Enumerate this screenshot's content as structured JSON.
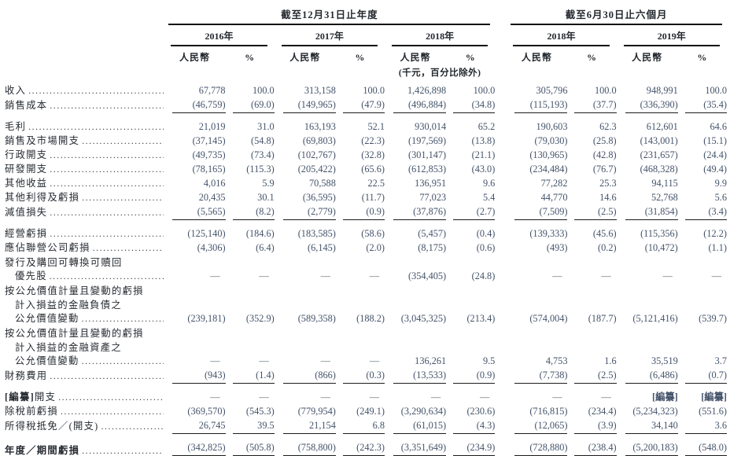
{
  "meta": {
    "currency_note": "(千元，百分比除外)"
  },
  "colors": {
    "number_color": "#44536a",
    "label_color": "#262b31",
    "rule_color": "#1c1c1c"
  },
  "header": {
    "periods": [
      {
        "label": "截至12月31日止年度"
      },
      {
        "label": "截至6月30日止六個月"
      }
    ],
    "year_groups": [
      "2016年",
      "2017年",
      "2018年",
      "2018年",
      "2019年"
    ],
    "unit_rmb": "人民幣",
    "unit_pct": "%"
  },
  "rows": [
    {
      "lines": [
        "收入"
      ],
      "values": [
        "67,778",
        "100.0",
        "313,158",
        "100.0",
        "1,426,898",
        "100.0",
        "305,796",
        "100.0",
        "948,991",
        "100.0"
      ],
      "rule_below": null,
      "space_above": false,
      "bold": false
    },
    {
      "lines": [
        "銷售成本"
      ],
      "values": [
        "(46,759)",
        "(69.0)",
        "(149,965)",
        "(47.9)",
        "(496,884)",
        "(34.8)",
        "(115,193)",
        "(37.7)",
        "(336,390)",
        "(35.4)"
      ],
      "rule_below": "single",
      "space_above": false,
      "bold": false
    },
    {
      "lines": [
        "毛利"
      ],
      "values": [
        "21,019",
        "31.0",
        "163,193",
        "52.1",
        "930,014",
        "65.2",
        "190,603",
        "62.3",
        "612,601",
        "64.6"
      ],
      "rule_below": null,
      "space_above": true,
      "bold": false
    },
    {
      "lines": [
        "銷售及市場開支"
      ],
      "values": [
        "(37,145)",
        "(54.8)",
        "(69,803)",
        "(22.3)",
        "(197,569)",
        "(13.8)",
        "(79,030)",
        "(25.8)",
        "(143,001)",
        "(15.1)"
      ],
      "rule_below": null,
      "space_above": false,
      "bold": false
    },
    {
      "lines": [
        "行政開支"
      ],
      "values": [
        "(49,735)",
        "(73.4)",
        "(102,767)",
        "(32.8)",
        "(301,147)",
        "(21.1)",
        "(130,965)",
        "(42.8)",
        "(231,657)",
        "(24.4)"
      ],
      "rule_below": null,
      "space_above": false,
      "bold": false
    },
    {
      "lines": [
        "研發開支"
      ],
      "values": [
        "(78,165)",
        "(115.3)",
        "(205,422)",
        "(65.6)",
        "(612,853)",
        "(43.0)",
        "(234,484)",
        "(76.7)",
        "(468,328)",
        "(49.4)"
      ],
      "rule_below": null,
      "space_above": false,
      "bold": false
    },
    {
      "lines": [
        "其他收益"
      ],
      "values": [
        "4,016",
        "5.9",
        "70,588",
        "22.5",
        "136,951",
        "9.6",
        "77,282",
        "25.3",
        "94,115",
        "9.9"
      ],
      "rule_below": null,
      "space_above": false,
      "bold": false
    },
    {
      "lines": [
        "其他利得及虧損"
      ],
      "values": [
        "20,435",
        "30.1",
        "(36,595)",
        "(11.7)",
        "77,023",
        "5.4",
        "44,770",
        "14.6",
        "52,768",
        "5.6"
      ],
      "rule_below": null,
      "space_above": false,
      "bold": false
    },
    {
      "lines": [
        "減值損失"
      ],
      "values": [
        "(5,565)",
        "(8.2)",
        "(2,779)",
        "(0.9)",
        "(37,876)",
        "(2.7)",
        "(7,509)",
        "(2.5)",
        "(31,854)",
        "(3.4)"
      ],
      "rule_below": "single",
      "space_above": false,
      "bold": false
    },
    {
      "lines": [
        "經營虧損"
      ],
      "values": [
        "(125,140)",
        "(184.6)",
        "(183,585)",
        "(58.6)",
        "(5,457)",
        "(0.4)",
        "(139,333)",
        "(45.6)",
        "(115,356)",
        "(12.2)"
      ],
      "rule_below": null,
      "space_above": true,
      "bold": false
    },
    {
      "lines": [
        "應佔聯營公司虧損"
      ],
      "values": [
        "(4,306)",
        "(6.4)",
        "(6,145)",
        "(2.0)",
        "(8,175)",
        "(0.6)",
        "(493)",
        "(0.2)",
        "(10,472)",
        "(1.1)"
      ],
      "rule_below": null,
      "space_above": false,
      "bold": false
    },
    {
      "lines": [
        "發行及購回可轉換可贖回",
        "優先股"
      ],
      "values": [
        "—",
        "—",
        "—",
        "—",
        "(354,405)",
        "(24.8)",
        "—",
        "—",
        "—",
        "—"
      ],
      "rule_below": null,
      "space_above": false,
      "bold": false
    },
    {
      "lines": [
        "按公允價值計量且變動的虧損",
        "計入損益的金融負債之",
        "公允價值變動"
      ],
      "values": [
        "(239,181)",
        "(352.9)",
        "(589,358)",
        "(188.2)",
        "(3,045,325)",
        "(213.4)",
        "(574,004)",
        "(187.7)",
        "(5,121,416)",
        "(539.7)"
      ],
      "rule_below": null,
      "space_above": false,
      "bold": false
    },
    {
      "lines": [
        "按公允價值計量且變動的虧損",
        "計入損益的金融資產之",
        "公允價值變動"
      ],
      "values": [
        "—",
        "—",
        "—",
        "—",
        "136,261",
        "9.5",
        "4,753",
        "1.6",
        "35,519",
        "3.7"
      ],
      "rule_below": null,
      "space_above": false,
      "bold": false
    },
    {
      "lines": [
        "財務費用"
      ],
      "values": [
        "(943)",
        "(1.4)",
        "(866)",
        "(0.3)",
        "(13,533)",
        "(0.9)",
        "(7,738)",
        "(2.5)",
        "(6,486)",
        "(0.7)"
      ],
      "rule_below": "single",
      "space_above": false,
      "bold": false
    },
    {
      "lines": [
        "[編纂]開支"
      ],
      "values": [
        "—",
        "—",
        "—",
        "—",
        "—",
        "—",
        "—",
        "—",
        "[編纂]",
        "[編纂]"
      ],
      "rule_below": null,
      "space_above": true,
      "bold": false
    },
    {
      "lines": [
        "除稅前虧損"
      ],
      "values": [
        "(369,570)",
        "(545.3)",
        "(779,954)",
        "(249.1)",
        "(3,290,634)",
        "(230.6)",
        "(716,815)",
        "(234.4)",
        "(5,234,323)",
        "(551.6)"
      ],
      "rule_below": null,
      "space_above": false,
      "bold": false
    },
    {
      "lines": [
        "所得稅抵免／(開支)"
      ],
      "values": [
        "26,745",
        "39.5",
        "21,154",
        "6.8",
        "(61,015)",
        "(4.3)",
        "(12,065)",
        "(3.9)",
        "34,140",
        "3.6"
      ],
      "rule_below": "single",
      "space_above": false,
      "bold": false
    },
    {
      "lines": [
        "年度／期間虧損"
      ],
      "values": [
        "(342,825)",
        "(505.8)",
        "(758,800)",
        "(242.3)",
        "(3,351,649)",
        "(234.9)",
        "(728,880)",
        "(238.4)",
        "(5,200,183)",
        "(548.0)"
      ],
      "rule_below": "double",
      "space_above": true,
      "bold": true
    }
  ]
}
